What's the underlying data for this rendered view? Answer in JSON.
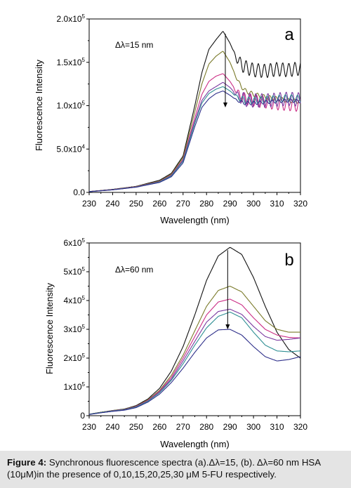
{
  "figure": {
    "caption_label": "Figure 4:",
    "caption_text": " Synchronous  fluorescence spectra (a).Δλ=15, (b). Δλ=60 nm HSA (10μM)in the presence of 0,10,15,20,25,30 μM 5-FU respectively."
  },
  "colors": {
    "series": [
      "#111111",
      "#7a7a2a",
      "#cc2f86",
      "#7a3aa0",
      "#2f8f94",
      "#2e2f8a"
    ],
    "axis": "#000000",
    "caption_bg": "#e4e4e4"
  },
  "chart_data": [
    {
      "type": "line",
      "panel_letter": "a",
      "annotation": "Δλ=15 nm",
      "xlabel": "Wavelength (nm)",
      "ylabel": "Fluorescence Intensity",
      "xlim": [
        230,
        320
      ],
      "ylim": [
        0,
        200000
      ],
      "x_ticks": [
        "230",
        "240",
        "250",
        "260",
        "270",
        "280",
        "290",
        "300",
        "310",
        "320"
      ],
      "y_ticks": [
        {
          "base": "0.0",
          "exp": ""
        },
        {
          "base": "5.0x10",
          "exp": "4"
        },
        {
          "base": "1.0x10",
          "exp": "5"
        },
        {
          "base": "1.5x10",
          "exp": "5"
        },
        {
          "base": "2.0x10",
          "exp": "5"
        }
      ],
      "x": [
        230,
        240,
        250,
        260,
        265,
        270,
        275,
        278,
        281,
        284,
        287,
        290,
        293,
        296,
        300,
        305,
        310,
        315,
        320
      ],
      "series": [
        {
          "values": [
            1000,
            3500,
            7000,
            14000,
            22000,
            42000,
            100000,
            138000,
            165000,
            176000,
            186000,
            172000,
            153000,
            145000,
            141000,
            140000,
            142000,
            141000,
            143000
          ],
          "osc": 8000
        },
        {
          "values": [
            1000,
            3300,
            6800,
            13000,
            21000,
            40000,
            93000,
            125000,
            148000,
            157000,
            163000,
            150000,
            130000,
            118000,
            113000,
            110000,
            108000,
            106000,
            105000
          ],
          "osc": 2500
        },
        {
          "values": [
            1000,
            3200,
            6500,
            12500,
            20000,
            38000,
            86000,
            113000,
            128000,
            134000,
            137000,
            128000,
            115000,
            108000,
            106000,
            104000,
            102000,
            101000,
            100000
          ],
          "osc": 7000
        },
        {
          "values": [
            900,
            3100,
            6300,
            12200,
            19500,
            37000,
            82000,
            106000,
            117000,
            122000,
            127000,
            121000,
            112000,
            107000,
            106000,
            106000,
            107000,
            108000,
            107000
          ],
          "osc": 8000
        },
        {
          "values": [
            900,
            3000,
            6200,
            12000,
            19000,
            36000,
            80000,
            103000,
            114000,
            119000,
            122000,
            117000,
            110000,
            106000,
            106000,
            107000,
            108000,
            109000,
            108000
          ],
          "osc": 4000
        },
        {
          "values": [
            800,
            2900,
            6000,
            11500,
            18000,
            34000,
            76000,
            98000,
            108000,
            114000,
            117000,
            112000,
            106000,
            103000,
            103000,
            104000,
            105000,
            106000,
            105000
          ],
          "osc": 2000
        }
      ],
      "arrow": {
        "x": 288,
        "y_from": 183000,
        "y_to": 98000
      }
    },
    {
      "type": "line",
      "panel_letter": "b",
      "annotation": "Δλ=60 nm",
      "xlabel": "Wavelength (nm)",
      "ylabel": "Fluorescence Intensity",
      "xlim": [
        230,
        320
      ],
      "ylim": [
        0,
        600000
      ],
      "x_ticks": [
        "230",
        "240",
        "250",
        "260",
        "270",
        "280",
        "290",
        "300",
        "310",
        "320"
      ],
      "y_ticks": [
        {
          "base": "0",
          "exp": ""
        },
        {
          "base": "1x10",
          "exp": "5"
        },
        {
          "base": "2x10",
          "exp": "5"
        },
        {
          "base": "3x10",
          "exp": "5"
        },
        {
          "base": "4x10",
          "exp": "5"
        },
        {
          "base": "5x10",
          "exp": "5"
        },
        {
          "base": "6x10",
          "exp": "5"
        }
      ],
      "x": [
        230,
        235,
        240,
        245,
        250,
        255,
        260,
        265,
        270,
        275,
        280,
        285,
        290,
        295,
        300,
        305,
        310,
        315,
        320
      ],
      "series": [
        {
          "values": [
            5000,
            12000,
            18000,
            23000,
            35000,
            58000,
            95000,
            155000,
            240000,
            350000,
            470000,
            555000,
            585000,
            560000,
            480000,
            380000,
            290000,
            230000,
            200000
          ],
          "osc": 0
        },
        {
          "values": [
            5000,
            12000,
            18000,
            22000,
            33000,
            55000,
            88000,
            140000,
            210000,
            295000,
            380000,
            435000,
            450000,
            430000,
            380000,
            330000,
            300000,
            290000,
            290000
          ],
          "osc": 0
        },
        {
          "values": [
            5000,
            11000,
            17000,
            21000,
            32000,
            53000,
            85000,
            133000,
            200000,
            275000,
            350000,
            395000,
            405000,
            385000,
            340000,
            300000,
            280000,
            272000,
            270000
          ],
          "osc": 0
        },
        {
          "values": [
            5000,
            11000,
            17000,
            21000,
            31000,
            51000,
            82000,
            127000,
            190000,
            258000,
            325000,
            362000,
            370000,
            352000,
            310000,
            275000,
            262000,
            265000,
            270000
          ],
          "osc": 0
        },
        {
          "values": [
            5000,
            11000,
            16000,
            20000,
            30000,
            50000,
            80000,
            123000,
            180000,
            245000,
            305000,
            345000,
            360000,
            340000,
            290000,
            245000,
            225000,
            222000,
            225000
          ],
          "osc": 0
        },
        {
          "values": [
            4000,
            10000,
            15000,
            19000,
            28000,
            47000,
            75000,
            115000,
            165000,
            220000,
            270000,
            298000,
            300000,
            280000,
            240000,
            205000,
            190000,
            195000,
            205000
          ],
          "osc": 0
        }
      ],
      "arrow": {
        "x": 289,
        "y_from": 575000,
        "y_to": 300000
      }
    }
  ]
}
